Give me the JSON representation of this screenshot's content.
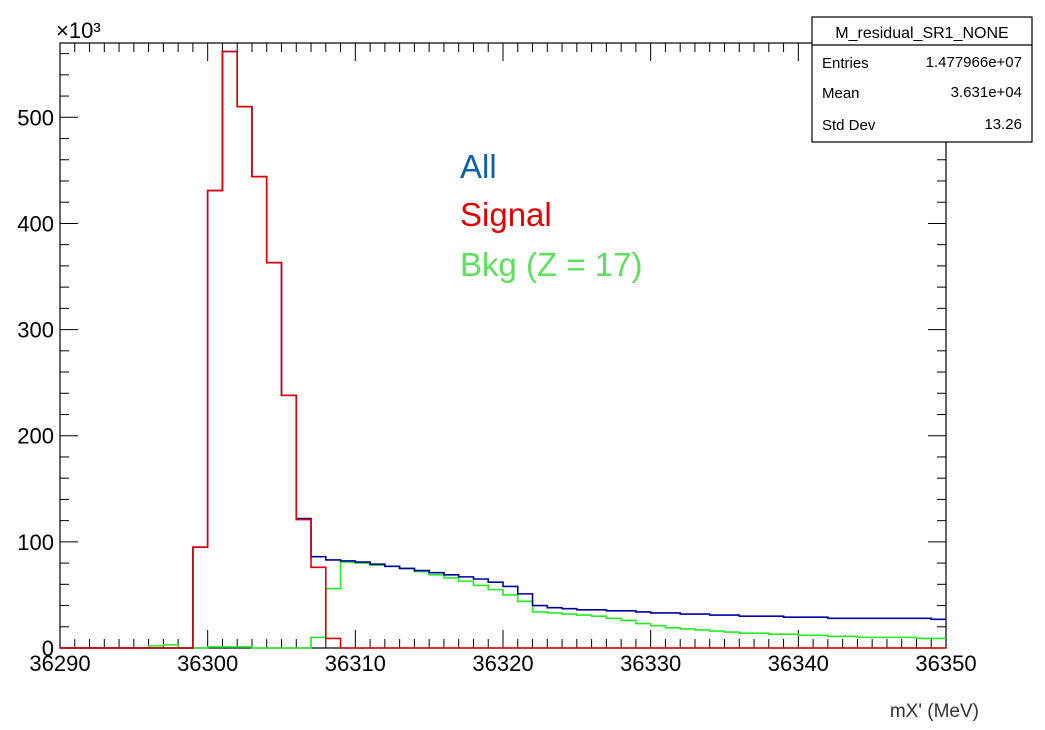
{
  "chart_data": {
    "type": "line",
    "title": "",
    "xlabel": "mX' (MeV)",
    "ylabel": "",
    "y_multiplier": "×10³",
    "xlim": [
      36290,
      36350
    ],
    "ylim": [
      0,
      570
    ],
    "x_ticks": [
      "36290",
      "36300",
      "36310",
      "36320",
      "36330",
      "36340",
      "36350"
    ],
    "y_ticks": [
      "0",
      "100",
      "200",
      "300",
      "400",
      "500"
    ],
    "bin_width": 1,
    "bin_start": 36290,
    "legend_position": "top-center",
    "series": [
      {
        "name": "All",
        "color": "#0000a0",
        "legend_color": "#1060a8",
        "values": [
          0,
          0,
          0,
          0,
          0,
          0,
          0,
          0,
          0,
          95,
          431,
          562,
          510,
          444,
          363,
          238,
          122,
          86,
          83,
          82,
          81,
          79,
          77,
          75,
          73,
          71,
          69,
          67,
          65,
          62,
          58,
          51,
          40,
          38,
          37,
          36,
          36,
          35,
          35,
          34,
          33,
          33,
          32,
          32,
          31,
          31,
          30,
          30,
          30,
          29,
          29,
          29,
          28,
          28,
          28,
          28,
          28,
          28,
          28,
          27
        ]
      },
      {
        "name": "Signal",
        "color": "#e00000",
        "legend_color": "#e00000",
        "values": [
          0,
          0,
          0,
          0,
          0,
          0,
          0,
          0,
          0,
          95,
          431,
          562,
          510,
          444,
          363,
          238,
          121,
          76,
          9,
          0,
          0,
          0,
          0,
          0,
          0,
          0,
          0,
          0,
          0,
          0,
          0,
          0,
          0,
          0,
          0,
          0,
          0,
          0,
          0,
          0,
          0,
          0,
          0,
          0,
          0,
          0,
          0,
          0,
          0,
          0,
          0,
          0,
          0,
          0,
          0,
          0,
          0,
          0,
          0,
          0
        ]
      },
      {
        "name": "Bkg (Z = 17)",
        "color": "#22ee22",
        "legend_color": "#5ee05e",
        "values": [
          0,
          0,
          0,
          0,
          0,
          0,
          2,
          3,
          0,
          0,
          1,
          1,
          1,
          0,
          0,
          0,
          0,
          10,
          56,
          81,
          80,
          78,
          77,
          75,
          72,
          69,
          66,
          63,
          59,
          55,
          50,
          44,
          34,
          33,
          32,
          31,
          30,
          28,
          26,
          23,
          21,
          19,
          18,
          17,
          16,
          15,
          14,
          14,
          13,
          13,
          12,
          12,
          11,
          11,
          10,
          10,
          10,
          10,
          9,
          9
        ]
      }
    ],
    "stats_box": {
      "title": "M_residual_SR1_NONE",
      "rows": [
        {
          "label": "Entries",
          "value": "1.477966e+07"
        },
        {
          "label": "Mean",
          "value": "3.631e+04"
        },
        {
          "label": "Std Dev",
          "value": "13.26"
        }
      ]
    }
  }
}
